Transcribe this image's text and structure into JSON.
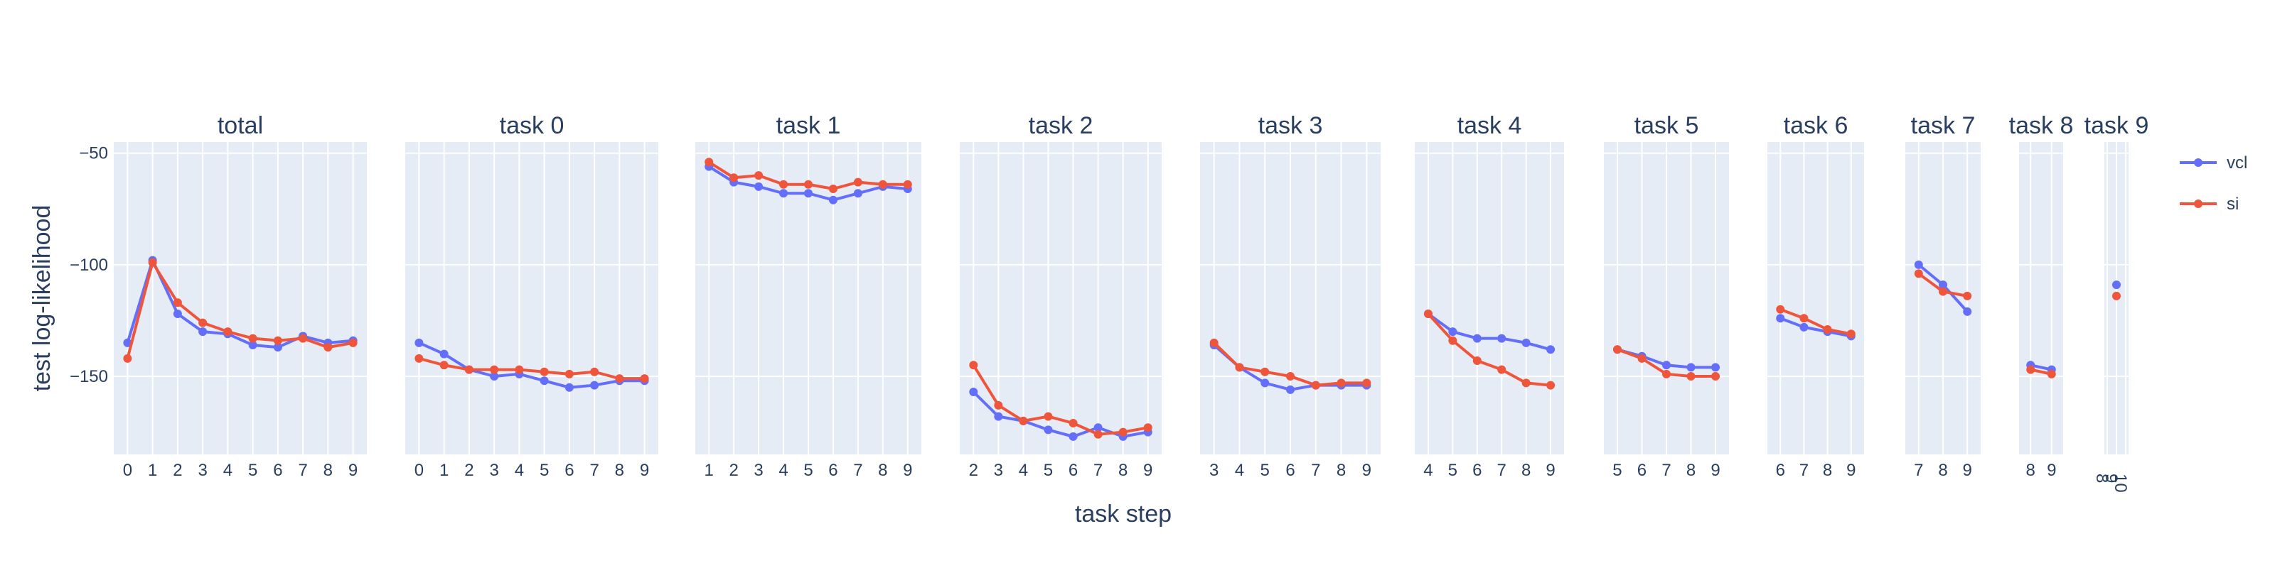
{
  "chart_data": {
    "type": "line",
    "xlabel": "task step",
    "ylabel": "test log-likelihood",
    "ylim": [
      -185,
      -45
    ],
    "y_ticks": [
      -50,
      -100,
      -150
    ],
    "legend_placement": "top-right",
    "grid": true,
    "series_meta": [
      {
        "key": "vcl",
        "name": "vcl",
        "color": "#636efa"
      },
      {
        "key": "si",
        "name": "si",
        "color": "#ef553b"
      }
    ],
    "panels": [
      {
        "title": "total",
        "x": [
          0,
          1,
          2,
          3,
          4,
          5,
          6,
          7,
          8,
          9
        ],
        "vcl": [
          -135,
          -98,
          -122,
          -130,
          -131,
          -136,
          -137,
          -132,
          -135,
          -134
        ],
        "si": [
          -142,
          -99,
          -117,
          -126,
          -130,
          -133,
          -134,
          -133,
          -137,
          -135
        ]
      },
      {
        "title": "task 0",
        "x": [
          0,
          1,
          2,
          3,
          4,
          5,
          6,
          7,
          8,
          9
        ],
        "vcl": [
          -135,
          -140,
          -147,
          -150,
          -149,
          -152,
          -155,
          -154,
          -152,
          -152
        ],
        "si": [
          -142,
          -145,
          -147,
          -147,
          -147,
          -148,
          -149,
          -148,
          -151,
          -151
        ]
      },
      {
        "title": "task 1",
        "x": [
          1,
          2,
          3,
          4,
          5,
          6,
          7,
          8,
          9
        ],
        "vcl": [
          -56,
          -63,
          -65,
          -68,
          -68,
          -71,
          -68,
          -65,
          -66
        ],
        "si": [
          -54,
          -61,
          -60,
          -64,
          -64,
          -66,
          -63,
          -64,
          -64
        ]
      },
      {
        "title": "task 2",
        "x": [
          2,
          3,
          4,
          5,
          6,
          7,
          8,
          9
        ],
        "vcl": [
          -157,
          -168,
          -170,
          -174,
          -177,
          -173,
          -177,
          -175
        ],
        "si": [
          -145,
          -163,
          -170,
          -168,
          -171,
          -176,
          -175,
          -173
        ]
      },
      {
        "title": "task 3",
        "x": [
          3,
          4,
          5,
          6,
          7,
          8,
          9
        ],
        "vcl": [
          -136,
          -146,
          -153,
          -156,
          -154,
          -154,
          -154
        ],
        "si": [
          -135,
          -146,
          -148,
          -150,
          -154,
          -153,
          -153
        ]
      },
      {
        "title": "task 4",
        "x": [
          4,
          5,
          6,
          7,
          8,
          9
        ],
        "vcl": [
          -122,
          -130,
          -133,
          -133,
          -135,
          -138
        ],
        "si": [
          -122,
          -134,
          -143,
          -147,
          -153,
          -154
        ]
      },
      {
        "title": "task 5",
        "x": [
          5,
          6,
          7,
          8,
          9
        ],
        "vcl": [
          -138,
          -141,
          -145,
          -146,
          -146
        ],
        "si": [
          -138,
          -142,
          -149,
          -150,
          -150
        ]
      },
      {
        "title": "task 6",
        "x": [
          6,
          7,
          8,
          9
        ],
        "vcl": [
          -124,
          -128,
          -130,
          -132
        ],
        "si": [
          -120,
          -124,
          -129,
          -131
        ]
      },
      {
        "title": "task 7",
        "x": [
          7,
          8,
          9
        ],
        "vcl": [
          -100,
          -109,
          -121
        ],
        "si": [
          -104,
          -112,
          -114
        ]
      },
      {
        "title": "task 8",
        "x": [
          8,
          9
        ],
        "vcl": [
          -145,
          -147
        ],
        "si": [
          -147,
          -149
        ]
      },
      {
        "title": "task 9",
        "x": [
          9
        ],
        "x_tick_labels": [
          "8",
          "9",
          "10"
        ],
        "vcl": [
          -109
        ],
        "si": [
          -114
        ]
      }
    ]
  }
}
